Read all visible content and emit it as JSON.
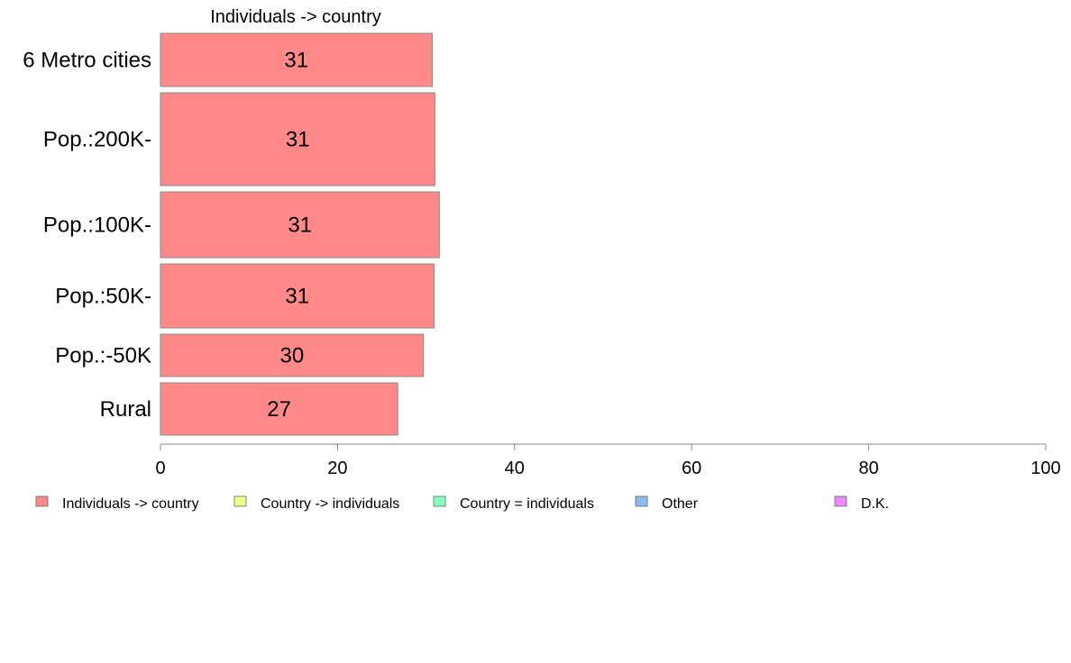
{
  "chart_data": {
    "type": "bar",
    "orientation": "horizontal",
    "series_title": "Individuals -> country",
    "categories": [
      "6 Metro cities",
      "Pop.:200K-",
      "Pop.:100K-",
      "Pop.:50K-",
      "Pop.:-50K",
      "Rural"
    ],
    "value_labels": [
      "31",
      "31",
      "31",
      "31",
      "30",
      "27"
    ],
    "values": [
      30.7,
      31.0,
      31.5,
      30.9,
      29.7,
      26.8
    ],
    "xlim": [
      0,
      100
    ],
    "xticks": [
      "0",
      "20",
      "40",
      "60",
      "80",
      "100"
    ],
    "grid": false,
    "legend_position": "bottom",
    "legend": [
      {
        "label": "Individuals -> country",
        "color": "#FF8888"
      },
      {
        "label": "Country -> individuals",
        "color": "#EEFF88"
      },
      {
        "label": "Country = individuals",
        "color": "#88FFBB"
      },
      {
        "label": "Other",
        "color": "#88BBEE"
      },
      {
        "label": "D.K.",
        "color": "#EE88FF"
      }
    ],
    "bar_color": "#FF8888"
  }
}
